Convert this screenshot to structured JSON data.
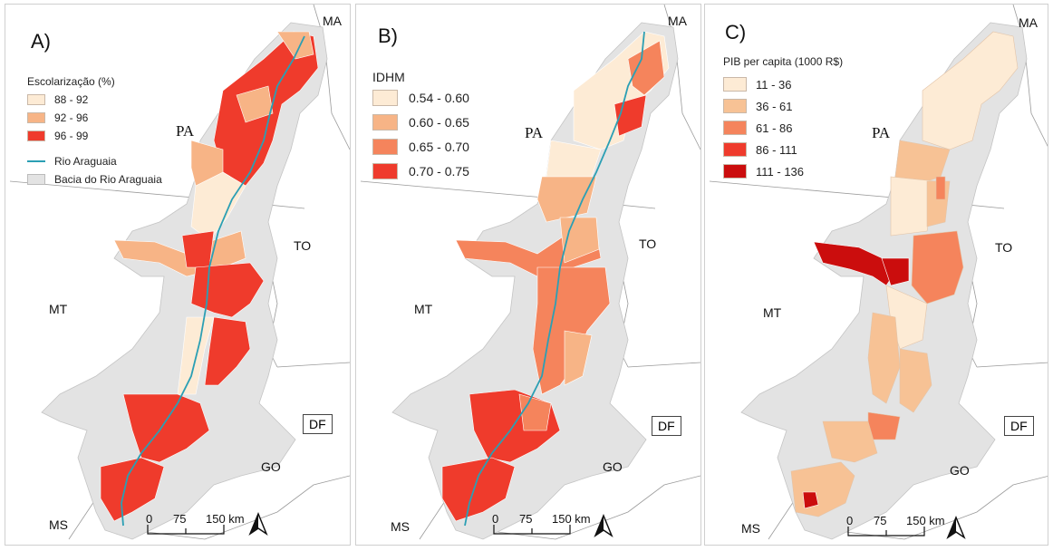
{
  "panels": [
    {
      "letter": "A)",
      "legend_title": "Escolarização (%)",
      "classes": [
        {
          "label": "88 - 92",
          "color": "#fdebd5"
        },
        {
          "label": "92 - 96",
          "color": "#f7b486"
        },
        {
          "label": "96 - 99",
          "color": "#ef3b2c"
        }
      ],
      "extra_legend": [
        {
          "label": "Rio Araguaia",
          "color": "#2b9fb4"
        },
        {
          "label": "Bacia do Rio Araguaia",
          "color": "#e3e3e3"
        }
      ]
    },
    {
      "letter": "B)",
      "legend_title": "IDHM",
      "classes": [
        {
          "label": "0.54 - 0.60",
          "color": "#fdebd5"
        },
        {
          "label": "0.60 - 0.65",
          "color": "#f7b486"
        },
        {
          "label": "0.65 - 0.70",
          "color": "#f5845c"
        },
        {
          "label": "0.70 -  0.75",
          "color": "#ef3b2c"
        }
      ]
    },
    {
      "letter": "C)",
      "legend_title": "PIB per capita (1000 R$)",
      "classes": [
        {
          "label": "11 - 36",
          "color": "#fdebd5"
        },
        {
          "label": "36 - 61",
          "color": "#f7c295"
        },
        {
          "label": "61 - 86",
          "color": "#f5845c"
        },
        {
          "label": "86 - 111",
          "color": "#ef3b2c"
        },
        {
          "label": "111 - 136",
          "color": "#cb0d0d"
        }
      ]
    }
  ],
  "states": {
    "ma": "MA",
    "pa": "PA",
    "to": "TO",
    "mt": "MT",
    "df": "DF",
    "go": "GO",
    "ms": "MS"
  },
  "scale": {
    "t0": "0",
    "t1": "75",
    "t2": "150 km"
  }
}
